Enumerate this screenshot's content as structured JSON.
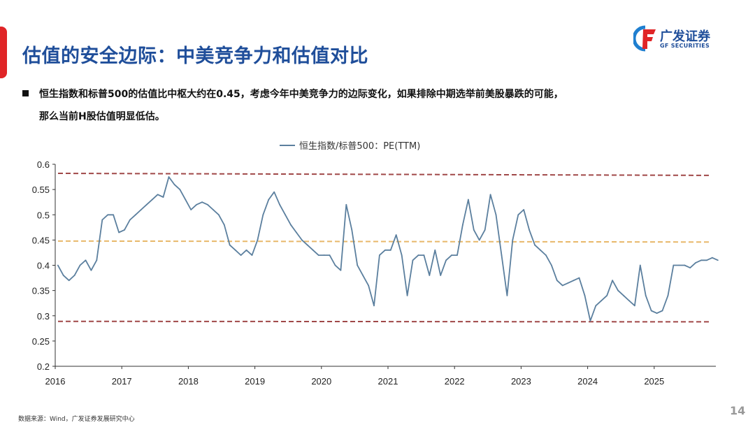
{
  "header": {
    "title": "估值的安全边际：中美竞争力和估值对比",
    "logo_cn": "广发证券",
    "logo_en": "GF SECURITIES"
  },
  "bullet": {
    "line1": "恒生指数和标普500的估值比中枢大约在0.45，考虑今年中美竞争力的边际变化，如果排除中期选举前美股暴跌的可能，",
    "line2": "那么当前H股估值明显低估。"
  },
  "footer": {
    "source": "数据来源：Wind，广发证券发展研究中心",
    "page": "14"
  },
  "colors": {
    "title": "#1f4e9a",
    "accent_red": "#e02527",
    "series": "#5b7f9e",
    "band": "#a04848",
    "mean": "#e8b86a"
  },
  "chart_data": {
    "type": "line",
    "title": "",
    "legend": "top-center",
    "series": [
      {
        "name": "恒生指数/标普500：PE(TTM)",
        "values": [
          [
            "2016-01",
            0.4
          ],
          [
            "2016-02",
            0.38
          ],
          [
            "2016-03",
            0.37
          ],
          [
            "2016-04",
            0.38
          ],
          [
            "2016-05",
            0.4
          ],
          [
            "2016-06",
            0.41
          ],
          [
            "2016-07",
            0.39
          ],
          [
            "2016-08",
            0.41
          ],
          [
            "2016-09",
            0.49
          ],
          [
            "2016-10",
            0.5
          ],
          [
            "2016-11",
            0.5
          ],
          [
            "2016-12",
            0.465
          ],
          [
            "2017-01",
            0.47
          ],
          [
            "2017-02",
            0.49
          ],
          [
            "2017-03",
            0.5
          ],
          [
            "2017-04",
            0.51
          ],
          [
            "2017-05",
            0.52
          ],
          [
            "2017-06",
            0.53
          ],
          [
            "2017-07",
            0.54
          ],
          [
            "2017-08",
            0.535
          ],
          [
            "2017-09",
            0.575
          ],
          [
            "2017-10",
            0.56
          ],
          [
            "2017-11",
            0.55
          ],
          [
            "2017-12",
            0.53
          ],
          [
            "2018-01",
            0.51
          ],
          [
            "2018-02",
            0.52
          ],
          [
            "2018-03",
            0.525
          ],
          [
            "2018-04",
            0.52
          ],
          [
            "2018-05",
            0.51
          ],
          [
            "2018-06",
            0.5
          ],
          [
            "2018-07",
            0.48
          ],
          [
            "2018-08",
            0.44
          ],
          [
            "2018-09",
            0.43
          ],
          [
            "2018-10",
            0.42
          ],
          [
            "2018-11",
            0.43
          ],
          [
            "2018-12",
            0.42
          ],
          [
            "2019-01",
            0.45
          ],
          [
            "2019-02",
            0.5
          ],
          [
            "2019-03",
            0.53
          ],
          [
            "2019-04",
            0.545
          ],
          [
            "2019-05",
            0.52
          ],
          [
            "2019-06",
            0.5
          ],
          [
            "2019-07",
            0.48
          ],
          [
            "2019-08",
            0.465
          ],
          [
            "2019-09",
            0.45
          ],
          [
            "2019-10",
            0.44
          ],
          [
            "2019-11",
            0.43
          ],
          [
            "2019-12",
            0.42
          ],
          [
            "2020-01",
            0.42
          ],
          [
            "2020-02",
            0.42
          ],
          [
            "2020-03",
            0.4
          ],
          [
            "2020-04",
            0.39
          ],
          [
            "2020-05",
            0.52
          ],
          [
            "2020-06",
            0.47
          ],
          [
            "2020-07",
            0.4
          ],
          [
            "2020-08",
            0.38
          ],
          [
            "2020-09",
            0.36
          ],
          [
            "2020-10",
            0.32
          ],
          [
            "2020-11",
            0.42
          ],
          [
            "2020-12",
            0.43
          ],
          [
            "2021-01",
            0.43
          ],
          [
            "2021-02",
            0.46
          ],
          [
            "2021-03",
            0.42
          ],
          [
            "2021-04",
            0.34
          ],
          [
            "2021-05",
            0.41
          ],
          [
            "2021-06",
            0.42
          ],
          [
            "2021-07",
            0.42
          ],
          [
            "2021-08",
            0.38
          ],
          [
            "2021-09",
            0.43
          ],
          [
            "2021-10",
            0.38
          ],
          [
            "2021-11",
            0.41
          ],
          [
            "2021-12",
            0.42
          ],
          [
            "2022-01",
            0.42
          ],
          [
            "2022-02",
            0.48
          ],
          [
            "2022-03",
            0.53
          ],
          [
            "2022-04",
            0.47
          ],
          [
            "2022-05",
            0.45
          ],
          [
            "2022-06",
            0.47
          ],
          [
            "2022-07",
            0.54
          ],
          [
            "2022-08",
            0.5
          ],
          [
            "2022-09",
            0.42
          ],
          [
            "2022-10",
            0.34
          ],
          [
            "2022-11",
            0.45
          ],
          [
            "2022-12",
            0.5
          ],
          [
            "2023-01",
            0.51
          ],
          [
            "2023-02",
            0.47
          ],
          [
            "2023-03",
            0.44
          ],
          [
            "2023-04",
            0.43
          ],
          [
            "2023-05",
            0.42
          ],
          [
            "2023-06",
            0.4
          ],
          [
            "2023-07",
            0.37
          ],
          [
            "2023-08",
            0.36
          ],
          [
            "2023-09",
            0.365
          ],
          [
            "2023-10",
            0.37
          ],
          [
            "2023-11",
            0.375
          ],
          [
            "2023-12",
            0.34
          ],
          [
            "2024-01",
            0.29
          ],
          [
            "2024-02",
            0.32
          ],
          [
            "2024-03",
            0.33
          ],
          [
            "2024-04",
            0.34
          ],
          [
            "2024-05",
            0.37
          ],
          [
            "2024-06",
            0.35
          ],
          [
            "2024-07",
            0.34
          ],
          [
            "2024-08",
            0.33
          ],
          [
            "2024-09",
            0.32
          ],
          [
            "2024-10",
            0.4
          ],
          [
            "2024-11",
            0.34
          ],
          [
            "2024-12",
            0.31
          ],
          [
            "2025-01",
            0.305
          ],
          [
            "2025-02",
            0.31
          ],
          [
            "2025-03",
            0.34
          ],
          [
            "2025-04",
            0.4
          ],
          [
            "2025-05",
            0.4
          ],
          [
            "2025-06",
            0.4
          ],
          [
            "2025-07",
            0.395
          ],
          [
            "2025-08",
            0.405
          ],
          [
            "2025-09",
            0.41
          ],
          [
            "2025-10",
            0.41
          ],
          [
            "2025-11",
            0.415
          ],
          [
            "2025-12",
            0.41
          ]
        ]
      }
    ],
    "reference_lines": [
      {
        "kind": "upper",
        "from": 0.582,
        "to": 0.578
      },
      {
        "kind": "mean",
        "from": 0.448,
        "to": 0.446
      },
      {
        "kind": "lower",
        "from": 0.289,
        "to": 0.288
      }
    ],
    "xticks": [
      "2016",
      "2017",
      "2018",
      "2019",
      "2020",
      "2021",
      "2022",
      "2023",
      "2024",
      "2025"
    ],
    "yticks": [
      "0.2",
      "0.25",
      "0.3",
      "0.35",
      "0.4",
      "0.45",
      "0.5",
      "0.55",
      "0.6"
    ],
    "ylim": [
      0.2,
      0.6
    ],
    "xlim": [
      "2016-01",
      "2025-12"
    ],
    "grid": false
  }
}
